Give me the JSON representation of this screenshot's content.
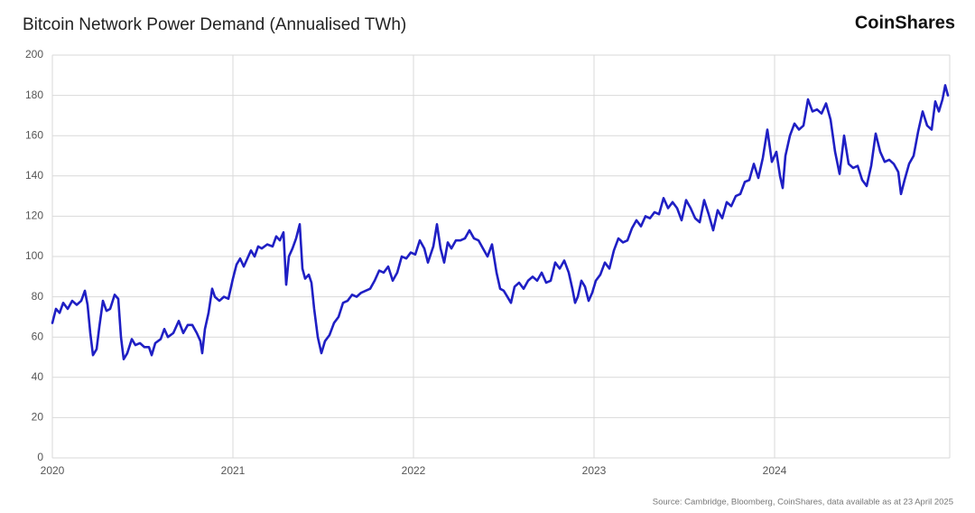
{
  "chart_data": {
    "type": "line",
    "title": "Bitcoin Network Power Demand (Annualised TWh)",
    "brand": "CoinShares",
    "source": "Source: Cambridge, Bloomberg, CoinShares, data available as at 23 April 2025",
    "xlim": [
      2020,
      2024.97
    ],
    "xticks": [
      2020,
      2021,
      2022,
      2023,
      2024
    ],
    "ylim": [
      0,
      200
    ],
    "yticks": [
      0,
      20,
      40,
      60,
      80,
      100,
      120,
      140,
      160,
      180,
      200
    ],
    "grid": true,
    "x": [
      2020.0,
      2020.02,
      2020.04,
      2020.06,
      2020.085,
      2020.11,
      2020.135,
      2020.16,
      2020.18,
      2020.195,
      2020.21,
      2020.225,
      2020.245,
      2020.26,
      2020.28,
      2020.3,
      2020.32,
      2020.345,
      2020.365,
      2020.38,
      2020.395,
      2020.415,
      2020.44,
      2020.46,
      2020.485,
      2020.51,
      2020.535,
      2020.55,
      2020.57,
      2020.6,
      2020.62,
      2020.64,
      2020.67,
      2020.7,
      2020.725,
      2020.75,
      2020.775,
      2020.8,
      2020.82,
      2020.83,
      2020.845,
      2020.865,
      2020.885,
      2020.9,
      2020.925,
      2020.95,
      2020.975,
      2021.0,
      2021.02,
      2021.04,
      2021.06,
      2021.08,
      2021.1,
      2021.12,
      2021.14,
      2021.16,
      2021.19,
      2021.22,
      2021.24,
      2021.26,
      2021.28,
      2021.295,
      2021.31,
      2021.33,
      2021.35,
      2021.37,
      2021.385,
      2021.4,
      2021.42,
      2021.435,
      2021.45,
      2021.47,
      2021.49,
      2021.51,
      2021.535,
      2021.56,
      2021.585,
      2021.61,
      2021.635,
      2021.66,
      2021.685,
      2021.71,
      2021.735,
      2021.76,
      2021.785,
      2021.81,
      2021.835,
      2021.86,
      2021.885,
      2021.91,
      2021.935,
      2021.96,
      2021.985,
      2022.01,
      2022.035,
      2022.06,
      2022.08,
      2022.11,
      2022.13,
      2022.15,
      2022.17,
      2022.19,
      2022.21,
      2022.235,
      2022.26,
      2022.285,
      2022.31,
      2022.335,
      2022.36,
      2022.385,
      2022.41,
      2022.435,
      2022.46,
      2022.48,
      2022.5,
      2022.52,
      2022.54,
      2022.56,
      2022.585,
      2022.61,
      2022.635,
      2022.66,
      2022.685,
      2022.71,
      2022.735,
      2022.76,
      2022.785,
      2022.81,
      2022.835,
      2022.86,
      2022.88,
      2022.895,
      2022.91,
      2022.93,
      2022.95,
      2022.97,
      2022.99,
      2023.01,
      2023.035,
      2023.06,
      2023.085,
      2023.11,
      2023.135,
      2023.16,
      2023.185,
      2023.21,
      2023.235,
      2023.26,
      2023.285,
      2023.31,
      2023.335,
      2023.36,
      2023.385,
      2023.41,
      2023.435,
      2023.46,
      2023.485,
      2023.51,
      2023.535,
      2023.56,
      2023.585,
      2023.61,
      2023.635,
      2023.66,
      2023.685,
      2023.71,
      2023.735,
      2023.76,
      2023.785,
      2023.81,
      2023.835,
      2023.86,
      2023.885,
      2023.91,
      2023.935,
      2023.96,
      2023.985,
      2024.01,
      2024.03,
      2024.045,
      2024.06,
      2024.085,
      2024.11,
      2024.135,
      2024.16,
      2024.185,
      2024.21,
      2024.235,
      2024.26,
      2024.285,
      2024.31,
      2024.335,
      2024.36,
      2024.385,
      2024.41,
      2024.435,
      2024.46,
      2024.485,
      2024.51,
      2024.535,
      2024.56,
      2024.585,
      2024.61,
      2024.635,
      2024.66,
      2024.685,
      2024.7,
      2024.72,
      2024.745,
      2024.77,
      2024.795,
      2024.82,
      2024.845,
      2024.87,
      2024.89,
      2024.91,
      2024.93,
      2024.945,
      2024.96
    ],
    "series": [
      {
        "color": "#1f1fc4",
        "values": [
          67,
          74,
          72,
          77,
          74,
          78,
          76,
          78,
          83,
          76,
          62,
          51,
          54,
          65,
          78,
          73,
          74,
          81,
          79,
          60,
          49,
          52,
          59,
          56,
          57,
          55,
          55,
          51,
          57,
          59,
          64,
          60,
          62,
          68,
          62,
          66,
          66,
          62,
          58,
          52,
          64,
          72,
          84,
          80,
          78,
          80,
          79,
          89,
          96,
          99,
          95,
          99,
          103,
          100,
          105,
          104,
          106,
          105,
          110,
          108,
          112,
          86,
          100,
          104,
          109,
          116,
          94,
          89,
          91,
          87,
          74,
          60,
          52,
          58,
          61,
          67,
          70,
          77,
          78,
          81,
          80,
          82,
          83,
          84,
          88,
          93,
          92,
          95,
          88,
          92,
          100,
          99,
          102,
          101,
          108,
          104,
          97,
          105,
          116,
          104,
          97,
          107,
          104,
          108,
          108,
          109,
          113,
          109,
          108,
          104,
          100,
          106,
          92,
          84,
          83,
          80,
          77,
          85,
          87,
          84,
          88,
          90,
          88,
          92,
          87,
          88,
          97,
          94,
          98,
          92,
          84,
          77,
          80,
          88,
          85,
          78,
          82,
          88,
          91,
          97,
          94,
          103,
          109,
          107,
          108,
          114,
          118,
          115,
          120,
          119,
          122,
          121,
          129,
          124,
          127,
          124,
          118,
          128,
          124,
          119,
          117,
          128,
          121,
          113,
          123,
          119,
          127,
          125,
          130,
          131,
          137,
          138,
          146,
          139,
          149,
          163,
          147,
          152,
          140,
          134,
          150,
          160,
          166,
          163,
          165,
          178,
          172,
          173,
          171,
          176,
          168,
          152,
          141,
          160,
          146,
          144,
          145,
          138,
          135,
          145,
          161,
          152,
          147,
          148,
          146,
          142,
          131,
          138,
          146,
          150,
          162,
          172,
          165,
          163,
          177,
          172,
          178,
          185,
          180
        ]
      }
    ]
  }
}
